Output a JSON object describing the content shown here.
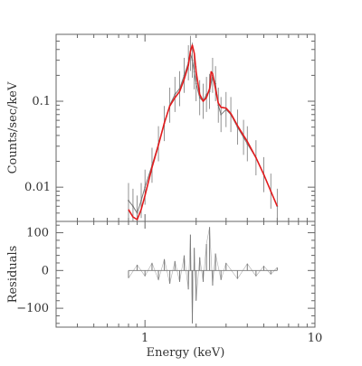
{
  "chart_data": [
    {
      "type": "line",
      "panel": "spectrum",
      "title": "",
      "ylabel": "Counts/sec/keV",
      "xlabel": "",
      "x_scale": "log",
      "y_scale": "log",
      "xlim": [
        0.3,
        10
      ],
      "ylim": [
        0.004,
        0.6
      ],
      "x_tick_labels": [
        {
          "value": 1,
          "label": "1"
        },
        {
          "value": 10,
          "label": "10"
        }
      ],
      "y_tick_labels": [
        {
          "value": 0.1,
          "label": "0.1"
        },
        {
          "value": 0.01,
          "label": "0.01"
        }
      ],
      "grid": false,
      "series": [
        {
          "role": "observed data",
          "color": "#777777",
          "x": [
            0.8,
            0.85,
            0.9,
            0.95,
            1.0,
            1.1,
            1.2,
            1.3,
            1.4,
            1.5,
            1.6,
            1.7,
            1.8,
            1.85,
            1.9,
            1.95,
            2.0,
            2.1,
            2.2,
            2.3,
            2.4,
            2.5,
            2.6,
            2.7,
            2.8,
            3.0,
            3.2,
            3.5,
            3.8,
            4.0,
            4.5,
            5.0,
            5.5,
            6.0
          ],
          "y": [
            0.007,
            0.006,
            0.005,
            0.007,
            0.01,
            0.018,
            0.032,
            0.055,
            0.09,
            0.12,
            0.14,
            0.2,
            0.28,
            0.36,
            0.3,
            0.22,
            0.16,
            0.11,
            0.1,
            0.12,
            0.13,
            0.2,
            0.16,
            0.09,
            0.07,
            0.08,
            0.07,
            0.05,
            0.038,
            0.032,
            0.022,
            0.014,
            0.009,
            0.006
          ]
        },
        {
          "role": "model",
          "color": "#e31a1c",
          "x": [
            0.8,
            0.85,
            0.9,
            0.95,
            1.0,
            1.1,
            1.2,
            1.3,
            1.4,
            1.5,
            1.6,
            1.7,
            1.8,
            1.85,
            1.9,
            1.95,
            2.0,
            2.1,
            2.2,
            2.3,
            2.4,
            2.45,
            2.5,
            2.6,
            2.7,
            2.8,
            3.0,
            3.2,
            3.5,
            3.8,
            4.0,
            4.5,
            5.0,
            5.5,
            6.0
          ],
          "y": [
            0.0055,
            0.0045,
            0.0042,
            0.0055,
            0.008,
            0.017,
            0.031,
            0.056,
            0.088,
            0.11,
            0.13,
            0.18,
            0.26,
            0.38,
            0.45,
            0.36,
            0.22,
            0.12,
            0.1,
            0.11,
            0.14,
            0.22,
            0.21,
            0.14,
            0.095,
            0.085,
            0.083,
            0.072,
            0.052,
            0.04,
            0.034,
            0.022,
            0.014,
            0.009,
            0.006
          ]
        }
      ]
    },
    {
      "type": "line",
      "panel": "residuals",
      "title": "",
      "xlabel": "Energy (keV)",
      "ylabel": "Residuals",
      "x_scale": "log",
      "xlim": [
        0.3,
        10
      ],
      "ylim": [
        -150,
        130
      ],
      "x_tick_labels": [
        {
          "value": 1,
          "label": "1"
        },
        {
          "value": 10,
          "label": "10"
        }
      ],
      "y_tick_labels": [
        {
          "value": 100,
          "label": "100"
        },
        {
          "value": 0,
          "label": "0"
        },
        {
          "value": -100,
          "label": "−100"
        }
      ],
      "grid": false,
      "zero_line": true,
      "series": [
        {
          "role": "residuals",
          "color": "#777777",
          "x": [
            0.8,
            0.9,
            1.0,
            1.1,
            1.2,
            1.3,
            1.4,
            1.5,
            1.6,
            1.7,
            1.8,
            1.85,
            1.9,
            1.95,
            2.0,
            2.1,
            2.2,
            2.3,
            2.4,
            2.5,
            2.6,
            2.8,
            3.0,
            3.5,
            4.0,
            4.5,
            5.0,
            5.5,
            6.0
          ],
          "y": [
            -20,
            15,
            -15,
            20,
            -25,
            30,
            -35,
            25,
            -30,
            40,
            -50,
            95,
            -140,
            60,
            -80,
            35,
            -30,
            70,
            115,
            -40,
            45,
            -25,
            20,
            -22,
            18,
            -15,
            12,
            -10,
            8
          ]
        }
      ]
    }
  ]
}
